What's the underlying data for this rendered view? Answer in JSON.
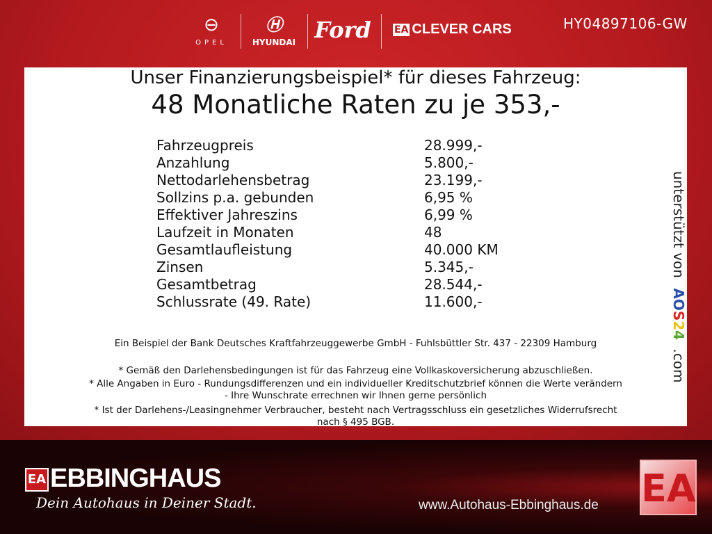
{
  "header": {
    "brands": [
      "OPEL",
      "HYUNDAI",
      "Ford",
      "CLEVER CARS"
    ],
    "clever_badge": "EA",
    "vehicle_code": "HY04897106-GW"
  },
  "offer": {
    "headline": "Unser Finanzierungsbeispiel* für dieses Fahrzeug:",
    "rate_line": "48 Monatliche Raten zu je 353,-",
    "rows": [
      {
        "label": "Fahrzeugpreis",
        "value": "28.999,-"
      },
      {
        "label": "Anzahlung",
        "value": "5.800,-"
      },
      {
        "label": "Nettodarlehensbetrag",
        "value": "23.199,-"
      },
      {
        "label": "Sollzins p.a. gebunden",
        "value": "6,95 %"
      },
      {
        "label": "Effektiver Jahreszins",
        "value": "6,99 %"
      },
      {
        "label": "Laufzeit in Monaten",
        "value": "48"
      },
      {
        "label": "Gesamtlaufleistung",
        "value": "40.000 KM"
      },
      {
        "label": "Zinsen",
        "value": "5.345,-"
      },
      {
        "label": "Gesamtbetrag",
        "value": "28.544,-"
      },
      {
        "label": "Schlussrate (49. Rate)",
        "value": "11.600,-"
      }
    ],
    "bank": "Ein Beispiel der Bank Deutsches Kraftfahrzeuggewerbe GmbH - Fuhlsbüttler Str. 437 - 22309 Hamburg",
    "notes": [
      "* Gemäß den Darlehensbedingungen ist für das Fahrzeug eine Vollkaskoversicherung abzuschließen.",
      "* Alle Angaben in Euro - Rundungsdifferenzen und ein individueller Kreditschutzbrief können die Werte verändern",
      "- Ihre Wunschrate errechnen wir Ihnen gerne persönlich",
      "* Ist der Darlehens-/Leasingnehmer Verbraucher, besteht nach Vertragsschluss ein gesetzliches Widerrufsrecht",
      "nach § 495 BGB."
    ]
  },
  "support": {
    "prefix": "unterstützt von",
    "logo": "AOS24",
    "suffix": ".com",
    "colors": [
      "#2b4fa8",
      "#2b4fa8",
      "#d92a2a",
      "#e8c21a",
      "#5aa832"
    ]
  },
  "footer": {
    "badge": "EA",
    "name": "EBBINGHAUS",
    "slogan": "Dein Autohaus in Deiner Stadt.",
    "url": "www.Autohaus-Ebbinghaus.de"
  }
}
